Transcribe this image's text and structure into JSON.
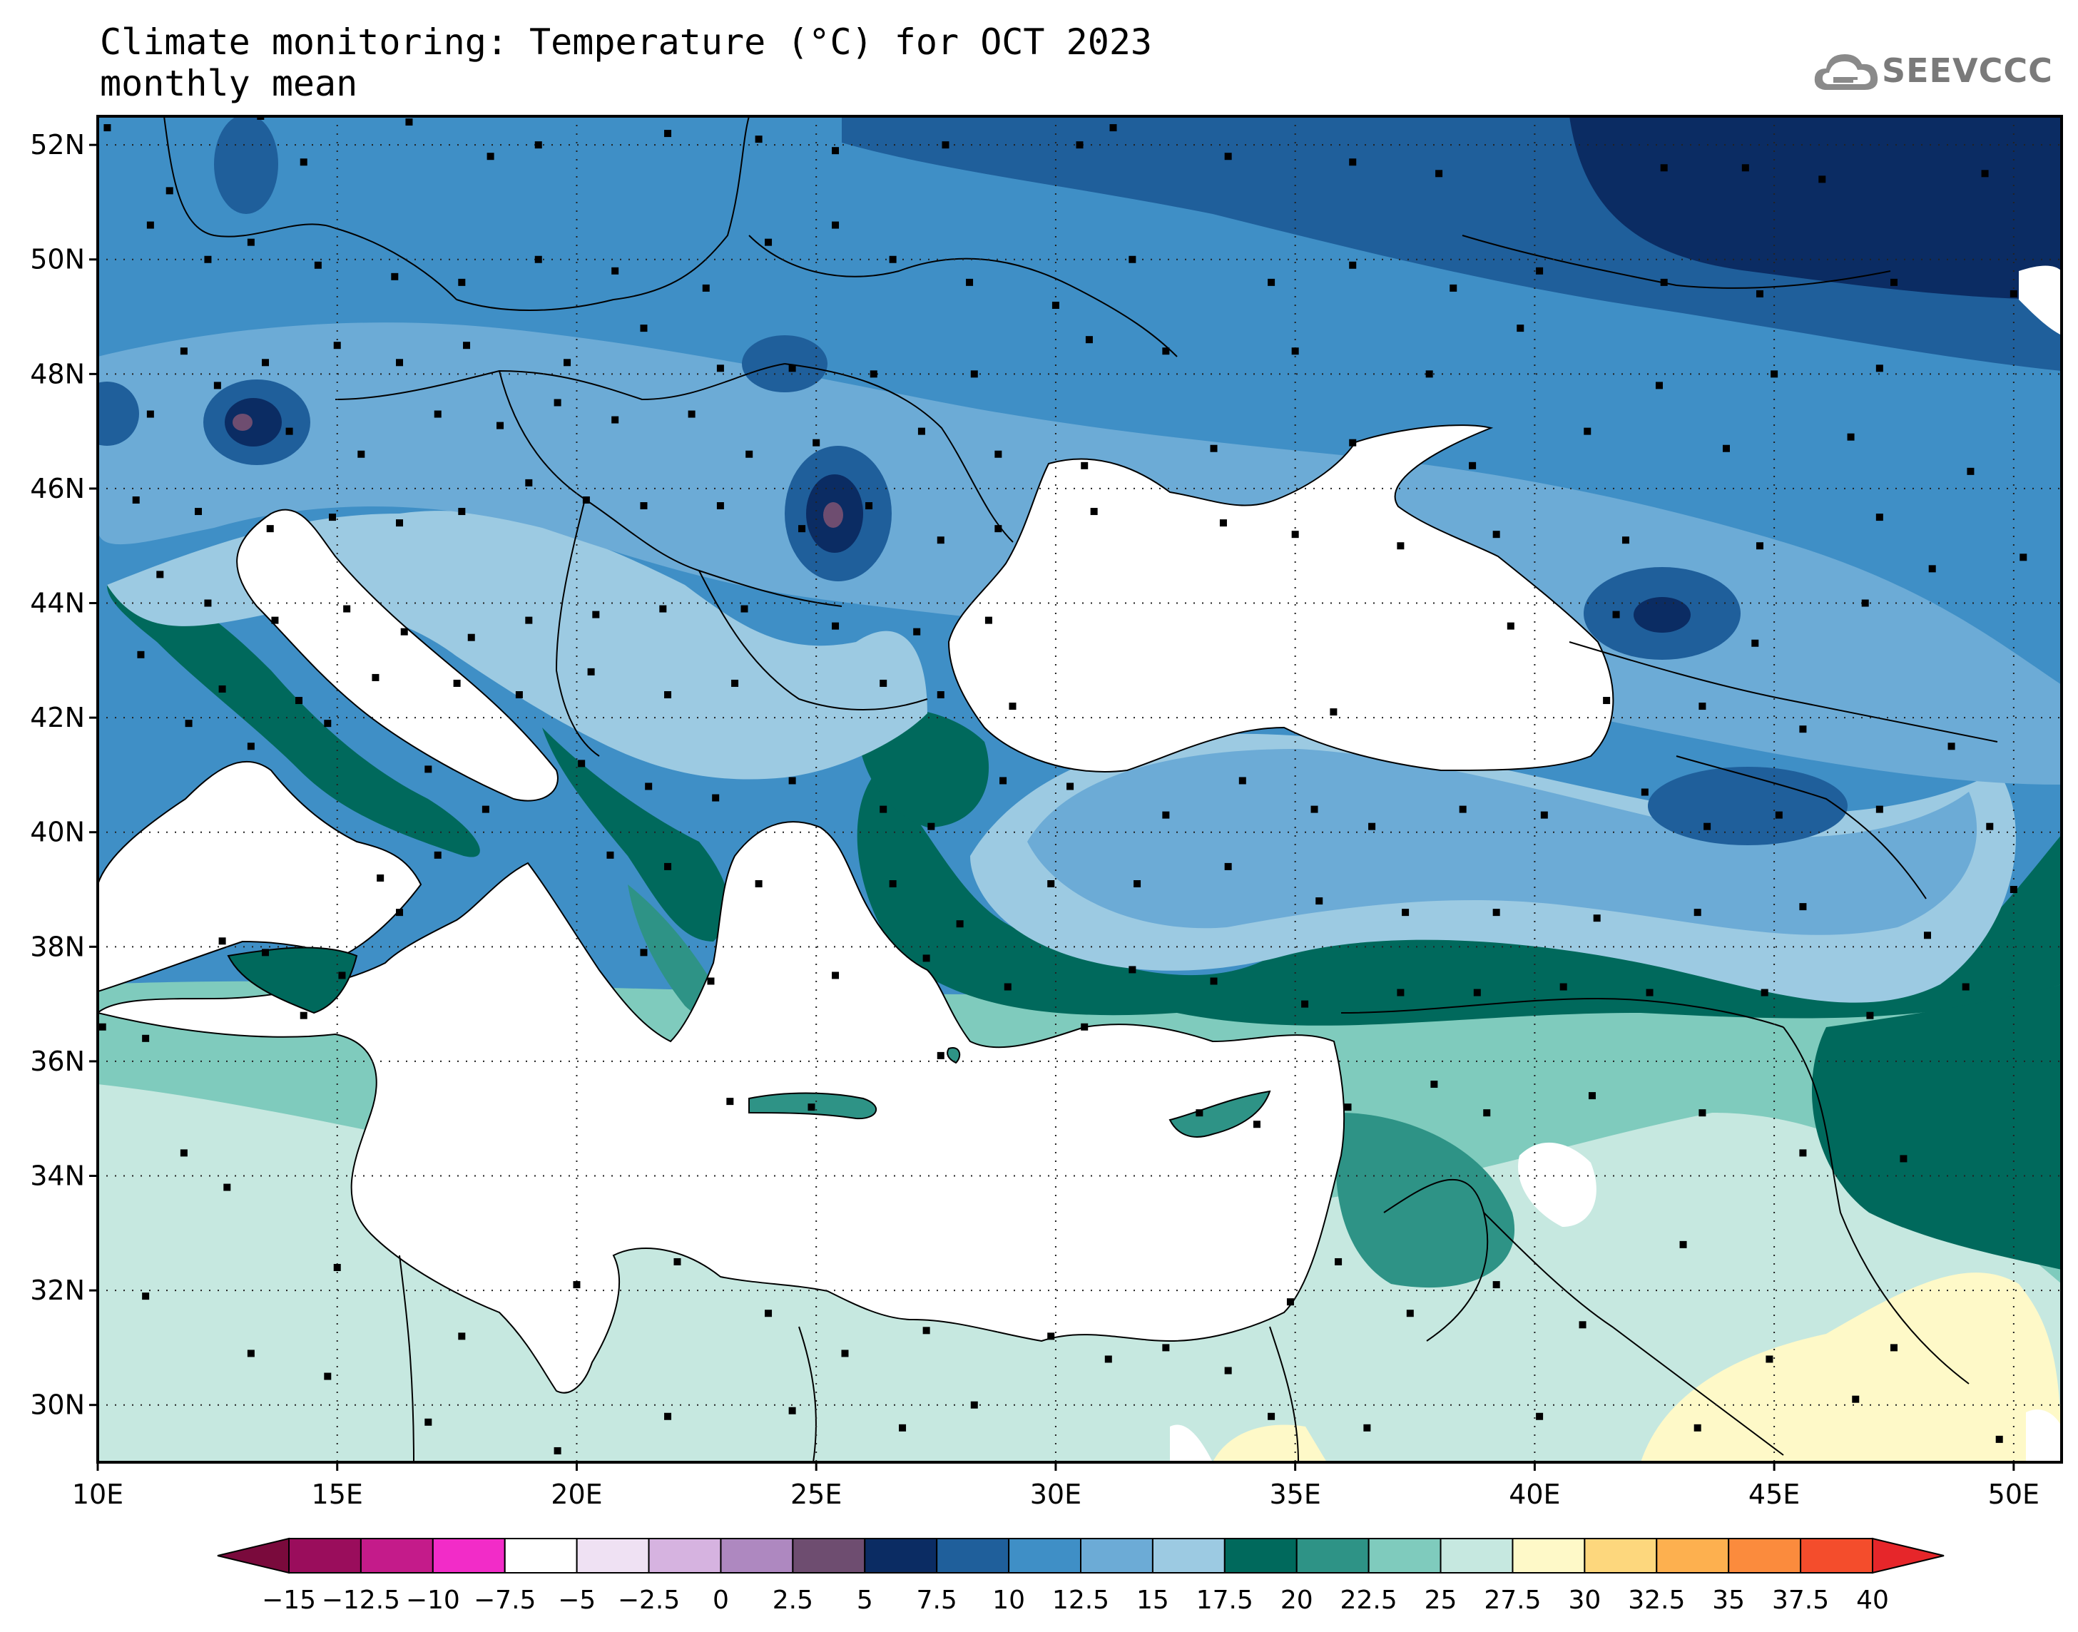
{
  "title_line1": "Climate monitoring: Temperature (°C) for OCT 2023",
  "title_line2": "monthly mean",
  "logo_text": "SEEVCCC",
  "map": {
    "lon_range": [
      10,
      51
    ],
    "lat_range": [
      29,
      52.5
    ],
    "lon_ticks": [
      {
        "value": 10,
        "label": "10E"
      },
      {
        "value": 15,
        "label": "15E"
      },
      {
        "value": 20,
        "label": "20E"
      },
      {
        "value": 25,
        "label": "25E"
      },
      {
        "value": 30,
        "label": "30E"
      },
      {
        "value": 35,
        "label": "35E"
      },
      {
        "value": 40,
        "label": "40E"
      },
      {
        "value": 45,
        "label": "45E"
      },
      {
        "value": 50,
        "label": "50E"
      }
    ],
    "lat_ticks": [
      {
        "value": 30,
        "label": "30N"
      },
      {
        "value": 32,
        "label": "32N"
      },
      {
        "value": 34,
        "label": "34N"
      },
      {
        "value": 36,
        "label": "36N"
      },
      {
        "value": 38,
        "label": "38N"
      },
      {
        "value": 40,
        "label": "40N"
      },
      {
        "value": 42,
        "label": "42N"
      },
      {
        "value": 44,
        "label": "44N"
      },
      {
        "value": 46,
        "label": "46N"
      },
      {
        "value": 48,
        "label": "48N"
      },
      {
        "value": 50,
        "label": "50N"
      },
      {
        "value": 52,
        "label": "52N"
      }
    ],
    "grid": "dotted"
  },
  "colorbar": {
    "labels": [
      "−15",
      "−12.5",
      "−10",
      "−7.5",
      "−5",
      "−2.5",
      "0",
      "2.5",
      "5",
      "7.5",
      "10",
      "12.5",
      "15",
      "17.5",
      "20",
      "22.5",
      "25",
      "27.5",
      "30",
      "32.5",
      "35",
      "37.5",
      "40"
    ],
    "low_arrow_color": "#7a0a3c",
    "high_arrow_color": "#e6262a",
    "colors": [
      "#9a0d5c",
      "#c41b8a",
      "#f22cc8",
      "#ffffff",
      "#efe1f3",
      "#d6b3e0",
      "#ae88c0",
      "#6e4d70",
      "#0b2c63",
      "#1f5f9b",
      "#3f8fc6",
      "#6cabd6",
      "#9ccae2",
      "#00695c",
      "#2e9386",
      "#7fcbbd",
      "#c6e8e0",
      "#fef9c8",
      "#fdd77d",
      "#fdb04f",
      "#fb8b3d",
      "#f44d2c"
    ]
  },
  "stations": [
    [
      10.2,
      52.3
    ],
    [
      11.5,
      51.2
    ],
    [
      13.4,
      52.5
    ],
    [
      14.3,
      51.7
    ],
    [
      16.5,
      52.4
    ],
    [
      18.2,
      51.8
    ],
    [
      19.2,
      52.0
    ],
    [
      21.9,
      52.2
    ],
    [
      23.8,
      52.1
    ],
    [
      25.4,
      51.9
    ],
    [
      27.7,
      52.0
    ],
    [
      30.5,
      52.0
    ],
    [
      31.2,
      52.3
    ],
    [
      33.6,
      51.8
    ],
    [
      36.2,
      51.7
    ],
    [
      38.0,
      51.5
    ],
    [
      42.7,
      51.6
    ],
    [
      44.4,
      51.6
    ],
    [
      46.0,
      51.4
    ],
    [
      49.4,
      51.5
    ],
    [
      11.1,
      50.6
    ],
    [
      12.3,
      50.0
    ],
    [
      13.2,
      50.3
    ],
    [
      14.6,
      49.9
    ],
    [
      16.2,
      49.7
    ],
    [
      17.6,
      49.6
    ],
    [
      19.2,
      50.0
    ],
    [
      20.8,
      49.8
    ],
    [
      22.7,
      49.5
    ],
    [
      24.0,
      50.3
    ],
    [
      25.4,
      50.6
    ],
    [
      26.6,
      50.0
    ],
    [
      28.2,
      49.6
    ],
    [
      30.0,
      49.2
    ],
    [
      31.6,
      50.0
    ],
    [
      34.5,
      49.6
    ],
    [
      36.2,
      49.9
    ],
    [
      38.3,
      49.5
    ],
    [
      40.1,
      49.8
    ],
    [
      42.7,
      49.6
    ],
    [
      44.7,
      49.4
    ],
    [
      47.5,
      49.6
    ],
    [
      50.0,
      49.4
    ],
    [
      11.8,
      48.4
    ],
    [
      13.5,
      48.2
    ],
    [
      15.0,
      48.5
    ],
    [
      16.3,
      48.2
    ],
    [
      17.7,
      48.5
    ],
    [
      19.8,
      48.2
    ],
    [
      21.4,
      48.8
    ],
    [
      23.0,
      48.1
    ],
    [
      24.5,
      48.1
    ],
    [
      26.2,
      48.0
    ],
    [
      28.3,
      48.0
    ],
    [
      30.7,
      48.6
    ],
    [
      32.3,
      48.4
    ],
    [
      35.0,
      48.4
    ],
    [
      37.8,
      48.0
    ],
    [
      39.7,
      48.8
    ],
    [
      42.6,
      47.8
    ],
    [
      45.0,
      48.0
    ],
    [
      47.2,
      48.1
    ],
    [
      11.1,
      47.3
    ],
    [
      12.5,
      47.8
    ],
    [
      14.0,
      47.0
    ],
    [
      15.5,
      46.6
    ],
    [
      17.1,
      47.3
    ],
    [
      18.4,
      47.1
    ],
    [
      19.6,
      47.5
    ],
    [
      20.8,
      47.2
    ],
    [
      22.4,
      47.3
    ],
    [
      23.6,
      46.6
    ],
    [
      25.0,
      46.8
    ],
    [
      27.2,
      47.0
    ],
    [
      28.8,
      46.6
    ],
    [
      30.6,
      46.4
    ],
    [
      33.3,
      46.7
    ],
    [
      36.2,
      46.8
    ],
    [
      38.7,
      46.4
    ],
    [
      41.1,
      47.0
    ],
    [
      44.0,
      46.7
    ],
    [
      46.6,
      46.9
    ],
    [
      49.1,
      46.3
    ],
    [
      10.8,
      45.8
    ],
    [
      12.1,
      45.6
    ],
    [
      13.6,
      45.3
    ],
    [
      14.9,
      45.5
    ],
    [
      16.3,
      45.4
    ],
    [
      17.6,
      45.6
    ],
    [
      19.0,
      46.1
    ],
    [
      20.2,
      45.8
    ],
    [
      21.4,
      45.7
    ],
    [
      23.0,
      45.7
    ],
    [
      24.7,
      45.3
    ],
    [
      26.1,
      45.7
    ],
    [
      27.6,
      45.1
    ],
    [
      28.8,
      45.3
    ],
    [
      30.8,
      45.6
    ],
    [
      33.5,
      45.4
    ],
    [
      35.0,
      45.2
    ],
    [
      37.2,
      45.0
    ],
    [
      39.2,
      45.2
    ],
    [
      41.9,
      45.1
    ],
    [
      44.7,
      45.0
    ],
    [
      47.2,
      45.5
    ],
    [
      48.3,
      44.6
    ],
    [
      50.2,
      44.8
    ],
    [
      11.3,
      44.5
    ],
    [
      12.3,
      44.0
    ],
    [
      13.7,
      43.7
    ],
    [
      15.2,
      43.9
    ],
    [
      16.4,
      43.5
    ],
    [
      17.8,
      43.4
    ],
    [
      19.0,
      43.7
    ],
    [
      20.4,
      43.8
    ],
    [
      21.8,
      43.9
    ],
    [
      23.5,
      43.9
    ],
    [
      25.4,
      43.6
    ],
    [
      27.1,
      43.5
    ],
    [
      28.6,
      43.7
    ],
    [
      39.5,
      43.6
    ],
    [
      41.7,
      43.8
    ],
    [
      44.6,
      43.3
    ],
    [
      46.9,
      44.0
    ],
    [
      10.9,
      43.1
    ],
    [
      12.6,
      42.5
    ],
    [
      14.2,
      42.3
    ],
    [
      15.8,
      42.7
    ],
    [
      17.5,
      42.6
    ],
    [
      18.8,
      42.4
    ],
    [
      20.3,
      42.8
    ],
    [
      21.9,
      42.4
    ],
    [
      23.3,
      42.6
    ],
    [
      26.4,
      42.6
    ],
    [
      27.6,
      42.4
    ],
    [
      29.1,
      42.2
    ],
    [
      35.8,
      42.1
    ],
    [
      41.5,
      42.3
    ],
    [
      43.5,
      42.2
    ],
    [
      45.6,
      41.8
    ],
    [
      48.7,
      41.5
    ],
    [
      11.9,
      41.9
    ],
    [
      13.2,
      41.5
    ],
    [
      14.8,
      41.9
    ],
    [
      16.9,
      41.1
    ],
    [
      18.1,
      40.4
    ],
    [
      20.1,
      41.2
    ],
    [
      21.5,
      40.8
    ],
    [
      22.9,
      40.6
    ],
    [
      24.5,
      40.9
    ],
    [
      26.4,
      40.4
    ],
    [
      27.4,
      40.1
    ],
    [
      28.9,
      40.9
    ],
    [
      30.3,
      40.8
    ],
    [
      32.3,
      40.3
    ],
    [
      33.9,
      40.9
    ],
    [
      35.4,
      40.4
    ],
    [
      36.6,
      40.1
    ],
    [
      38.5,
      40.4
    ],
    [
      40.2,
      40.3
    ],
    [
      42.3,
      40.7
    ],
    [
      43.6,
      40.1
    ],
    [
      45.1,
      40.3
    ],
    [
      47.2,
      40.4
    ],
    [
      49.5,
      40.1
    ],
    [
      15.9,
      39.2
    ],
    [
      17.1,
      39.6
    ],
    [
      20.7,
      39.6
    ],
    [
      21.9,
      39.4
    ],
    [
      23.8,
      39.1
    ],
    [
      26.6,
      39.1
    ],
    [
      28.0,
      38.4
    ],
    [
      29.9,
      39.1
    ],
    [
      31.7,
      39.1
    ],
    [
      33.6,
      39.4
    ],
    [
      35.5,
      38.8
    ],
    [
      37.3,
      38.6
    ],
    [
      39.2,
      38.6
    ],
    [
      41.3,
      38.5
    ],
    [
      43.4,
      38.6
    ],
    [
      45.6,
      38.7
    ],
    [
      48.2,
      38.2
    ],
    [
      50.0,
      39.0
    ],
    [
      12.6,
      38.1
    ],
    [
      13.5,
      37.9
    ],
    [
      15.1,
      37.5
    ],
    [
      16.3,
      38.6
    ],
    [
      21.4,
      37.9
    ],
    [
      22.8,
      37.4
    ],
    [
      25.4,
      37.5
    ],
    [
      27.3,
      37.8
    ],
    [
      29.0,
      37.3
    ],
    [
      31.6,
      37.6
    ],
    [
      33.3,
      37.4
    ],
    [
      35.2,
      37.0
    ],
    [
      37.2,
      37.2
    ],
    [
      38.8,
      37.2
    ],
    [
      40.6,
      37.3
    ],
    [
      42.4,
      37.2
    ],
    [
      44.8,
      37.2
    ],
    [
      47.0,
      36.8
    ],
    [
      49.0,
      37.3
    ],
    [
      10.1,
      36.6
    ],
    [
      11.0,
      36.4
    ],
    [
      14.3,
      36.8
    ],
    [
      23.2,
      35.3
    ],
    [
      24.9,
      35.2
    ],
    [
      27.6,
      36.1
    ],
    [
      30.6,
      36.6
    ],
    [
      33.0,
      35.1
    ],
    [
      34.2,
      34.9
    ],
    [
      36.1,
      35.2
    ],
    [
      37.9,
      35.6
    ],
    [
      39.0,
      35.1
    ],
    [
      41.2,
      35.4
    ],
    [
      43.5,
      35.1
    ],
    [
      45.6,
      34.4
    ],
    [
      47.7,
      34.3
    ],
    [
      11.8,
      34.4
    ],
    [
      12.7,
      33.8
    ],
    [
      15.0,
      32.4
    ],
    [
      17.6,
      31.2
    ],
    [
      20.0,
      32.1
    ],
    [
      22.1,
      32.5
    ],
    [
      24.0,
      31.6
    ],
    [
      25.6,
      30.9
    ],
    [
      27.3,
      31.3
    ],
    [
      29.9,
      31.2
    ],
    [
      32.3,
      31.0
    ],
    [
      34.9,
      31.8
    ],
    [
      35.9,
      32.5
    ],
    [
      37.4,
      31.6
    ],
    [
      39.2,
      32.1
    ],
    [
      41.0,
      31.4
    ],
    [
      43.1,
      32.8
    ],
    [
      44.9,
      30.8
    ],
    [
      47.5,
      31.0
    ],
    [
      11.0,
      31.9
    ],
    [
      13.2,
      30.9
    ],
    [
      14.8,
      30.5
    ],
    [
      16.9,
      29.7
    ],
    [
      19.6,
      29.2
    ],
    [
      21.9,
      29.8
    ],
    [
      24.5,
      29.9
    ],
    [
      26.8,
      29.6
    ],
    [
      28.3,
      30.0
    ],
    [
      31.1,
      30.8
    ],
    [
      33.6,
      30.6
    ],
    [
      34.5,
      29.8
    ],
    [
      36.5,
      29.6
    ],
    [
      40.1,
      29.8
    ],
    [
      43.4,
      29.6
    ],
    [
      46.7,
      30.1
    ],
    [
      49.7,
      29.4
    ]
  ]
}
